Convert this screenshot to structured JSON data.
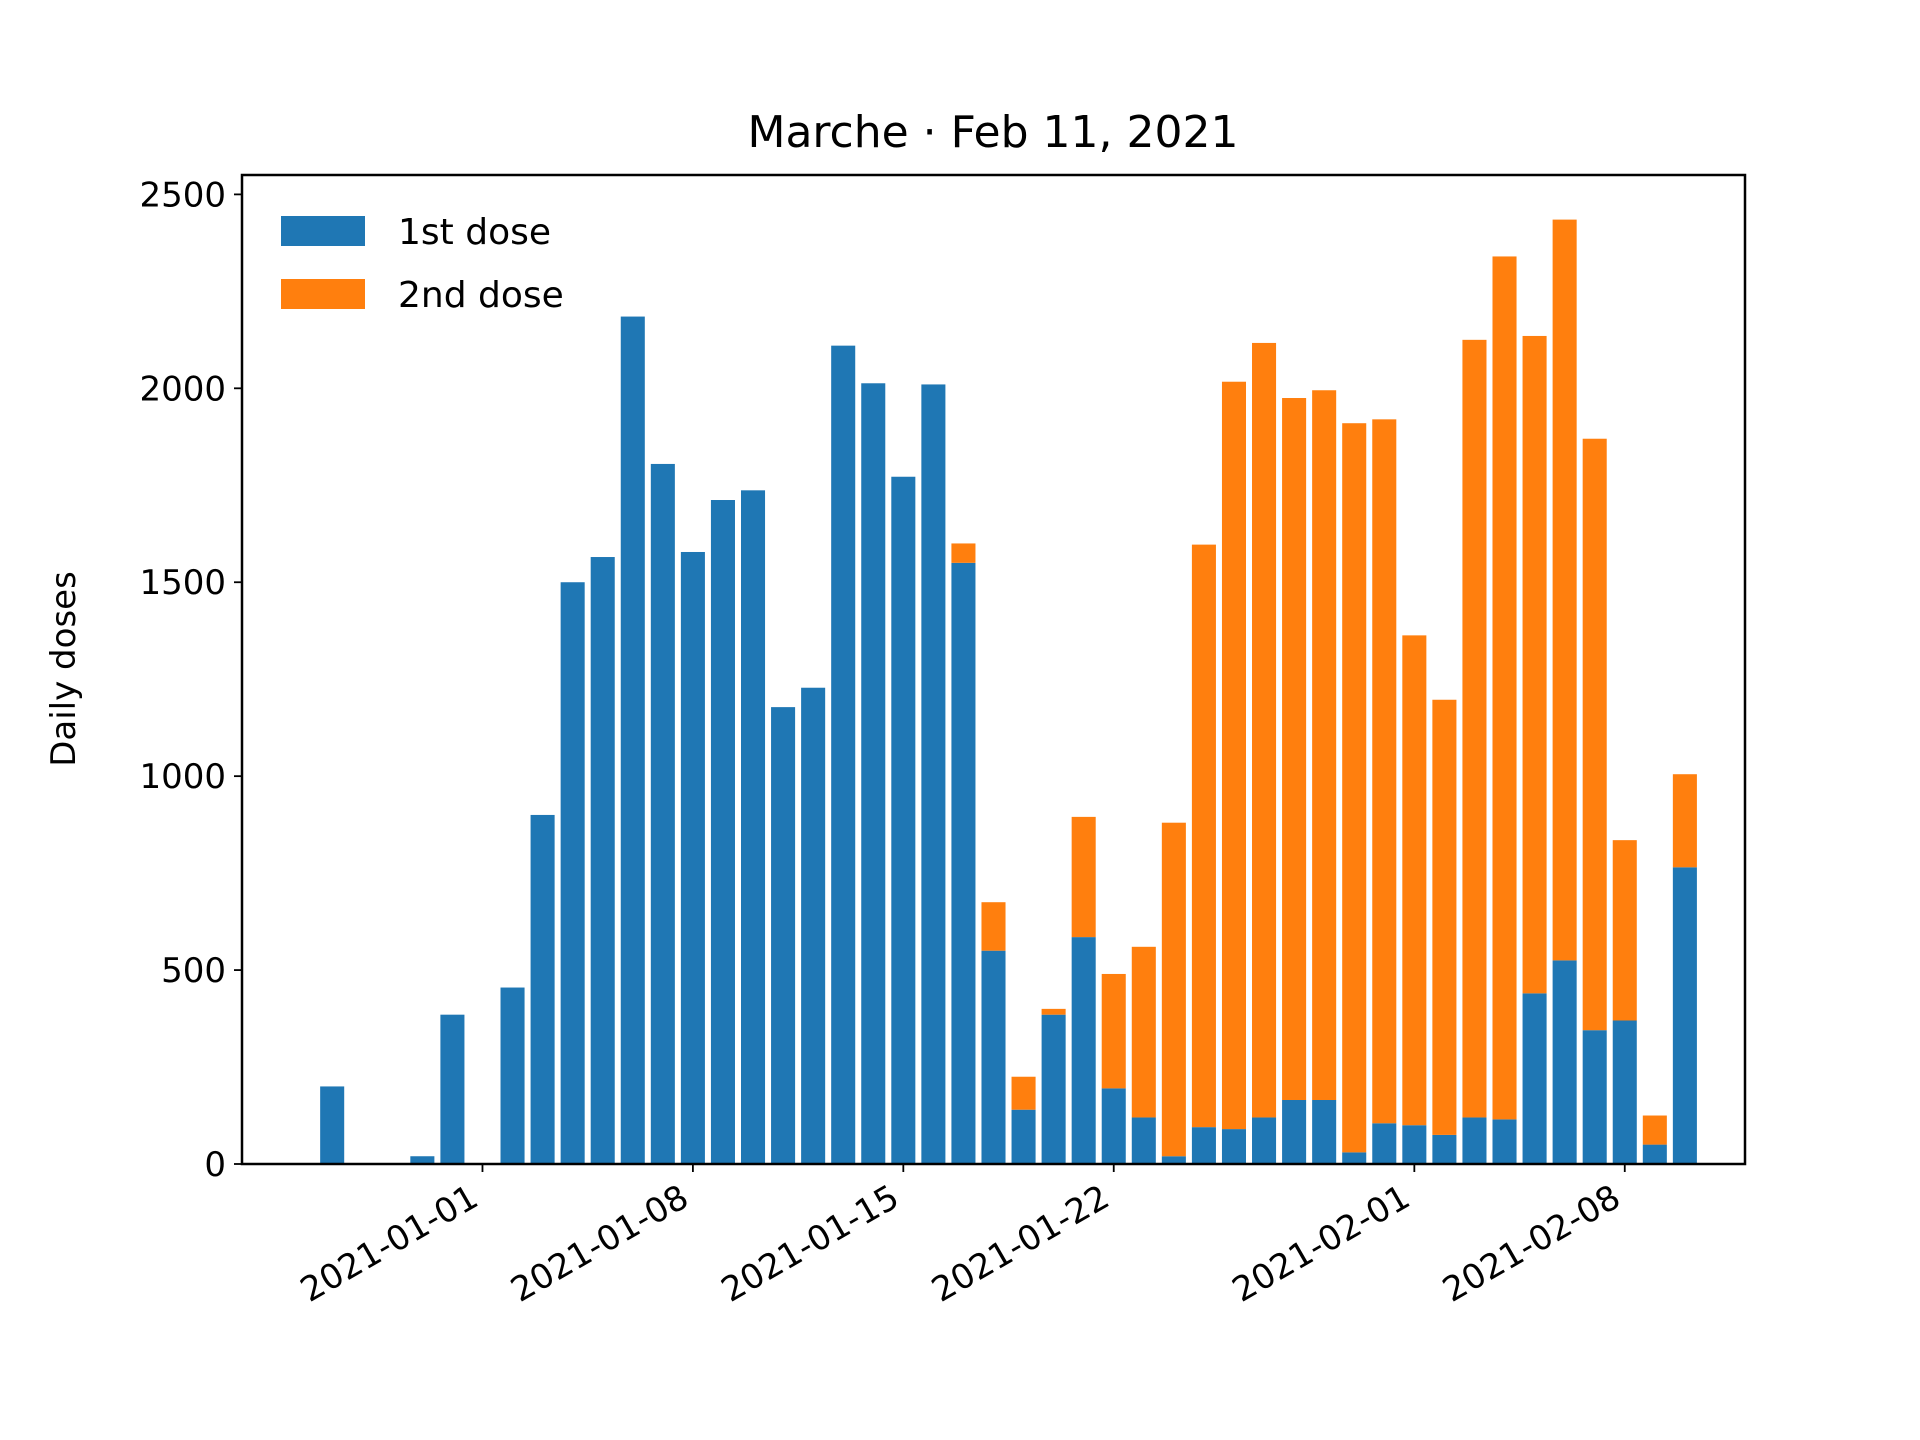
{
  "chart_data": {
    "type": "bar",
    "stacked": true,
    "title": "Marche · Feb 11, 2021",
    "xlabel": "",
    "ylabel": "Daily doses",
    "ylim": [
      0,
      2550
    ],
    "xlim": [
      "2020-12-24",
      "2021-02-12"
    ],
    "yticks": [
      0,
      500,
      1000,
      1500,
      2000,
      2500
    ],
    "xticks": [
      "2021-01-01",
      "2021-01-08",
      "2021-01-15",
      "2021-01-22",
      "2021-02-01",
      "2021-02-08"
    ],
    "grid": false,
    "legend_position": "top-left",
    "dates": [
      "2020-12-27",
      "2020-12-28",
      "2020-12-29",
      "2020-12-30",
      "2020-12-31",
      "2021-01-01",
      "2021-01-02",
      "2021-01-03",
      "2021-01-04",
      "2021-01-05",
      "2021-01-06",
      "2021-01-07",
      "2021-01-08",
      "2021-01-09",
      "2021-01-10",
      "2021-01-11",
      "2021-01-12",
      "2021-01-13",
      "2021-01-14",
      "2021-01-15",
      "2021-01-16",
      "2021-01-17",
      "2021-01-18",
      "2021-01-19",
      "2021-01-20",
      "2021-01-21",
      "2021-01-22",
      "2021-01-23",
      "2021-01-24",
      "2021-01-25",
      "2021-01-26",
      "2021-01-27",
      "2021-01-28",
      "2021-01-29",
      "2021-01-30",
      "2021-01-31",
      "2021-02-01",
      "2021-02-02",
      "2021-02-03",
      "2021-02-04",
      "2021-02-05",
      "2021-02-06",
      "2021-02-07",
      "2021-02-08",
      "2021-02-09",
      "2021-02-10",
      "2021-02-11"
    ],
    "series": [
      {
        "name": "1st dose",
        "color": "#1f77b4",
        "values": [
          200,
          0,
          0,
          20,
          385,
          0,
          455,
          900,
          1500,
          1565,
          2185,
          1805,
          1578,
          1712,
          1737,
          1178,
          1228,
          2110,
          2013,
          1772,
          2010,
          1550,
          550,
          140,
          385,
          585,
          195,
          120,
          20,
          95,
          90,
          120,
          165,
          165,
          30,
          105,
          100,
          75,
          120,
          115,
          440,
          525,
          345,
          370,
          50,
          765,
          0
        ]
      },
      {
        "name": "2nd dose",
        "color": "#ff7f0e",
        "values": [
          0,
          0,
          0,
          0,
          0,
          0,
          0,
          0,
          0,
          0,
          0,
          0,
          0,
          0,
          0,
          0,
          0,
          0,
          0,
          0,
          0,
          50,
          125,
          85,
          15,
          310,
          295,
          440,
          860,
          1502,
          1927,
          1997,
          1810,
          1830,
          1880,
          1815,
          1263,
          1122,
          2005,
          2225,
          1695,
          1910,
          1525,
          465,
          75,
          240,
          0
        ]
      }
    ]
  }
}
